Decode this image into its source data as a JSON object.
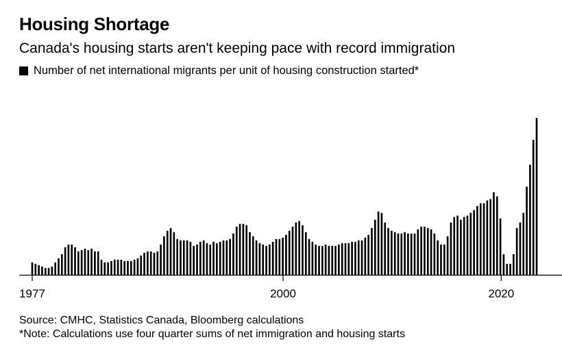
{
  "chart_data": {
    "type": "bar",
    "title": "Housing Shortage",
    "subtitle": "Canada's housing starts aren't keeping pace with record immigration",
    "legend": [
      {
        "name": "Number of net international migrants per unit of housing construction started*",
        "color": "#000000"
      }
    ],
    "x_ticks": [
      1977,
      2000,
      2020
    ],
    "x_range": [
      1977,
      2023.25
    ],
    "y_range": [
      0,
      1.15
    ],
    "grid": false,
    "series": [
      {
        "name": "Number of net international migrants per unit of housing construction started*",
        "values": [
          0.09,
          0.08,
          0.07,
          0.06,
          0.05,
          0.05,
          0.06,
          0.09,
          0.12,
          0.15,
          0.2,
          0.22,
          0.22,
          0.2,
          0.17,
          0.18,
          0.19,
          0.18,
          0.19,
          0.17,
          0.17,
          0.11,
          0.09,
          0.09,
          0.1,
          0.11,
          0.11,
          0.11,
          0.1,
          0.1,
          0.1,
          0.11,
          0.12,
          0.14,
          0.16,
          0.17,
          0.17,
          0.16,
          0.17,
          0.22,
          0.28,
          0.32,
          0.34,
          0.31,
          0.26,
          0.25,
          0.25,
          0.25,
          0.24,
          0.21,
          0.22,
          0.24,
          0.25,
          0.23,
          0.22,
          0.24,
          0.23,
          0.24,
          0.25,
          0.25,
          0.26,
          0.3,
          0.35,
          0.37,
          0.37,
          0.36,
          0.31,
          0.28,
          0.25,
          0.23,
          0.22,
          0.21,
          0.22,
          0.24,
          0.26,
          0.26,
          0.27,
          0.29,
          0.32,
          0.35,
          0.38,
          0.39,
          0.36,
          0.31,
          0.26,
          0.24,
          0.22,
          0.21,
          0.21,
          0.22,
          0.21,
          0.21,
          0.21,
          0.22,
          0.23,
          0.23,
          0.23,
          0.24,
          0.24,
          0.25,
          0.25,
          0.27,
          0.29,
          0.34,
          0.4,
          0.46,
          0.45,
          0.38,
          0.34,
          0.32,
          0.31,
          0.3,
          0.3,
          0.31,
          0.3,
          0.3,
          0.3,
          0.33,
          0.35,
          0.35,
          0.34,
          0.33,
          0.3,
          0.25,
          0.22,
          0.22,
          0.28,
          0.38,
          0.42,
          0.43,
          0.4,
          0.42,
          0.43,
          0.45,
          0.47,
          0.5,
          0.52,
          0.52,
          0.54,
          0.55,
          0.6,
          0.57,
          0.41,
          0.15,
          0.08,
          0.08,
          0.15,
          0.34,
          0.38,
          0.45,
          0.64,
          0.8,
          0.98,
          1.14
        ]
      }
    ]
  },
  "source": "Source: CMHC, Statistics Canada, Bloomberg calculations",
  "note": "*Note: Calculations use four quarter sums of net immigration and housing starts"
}
